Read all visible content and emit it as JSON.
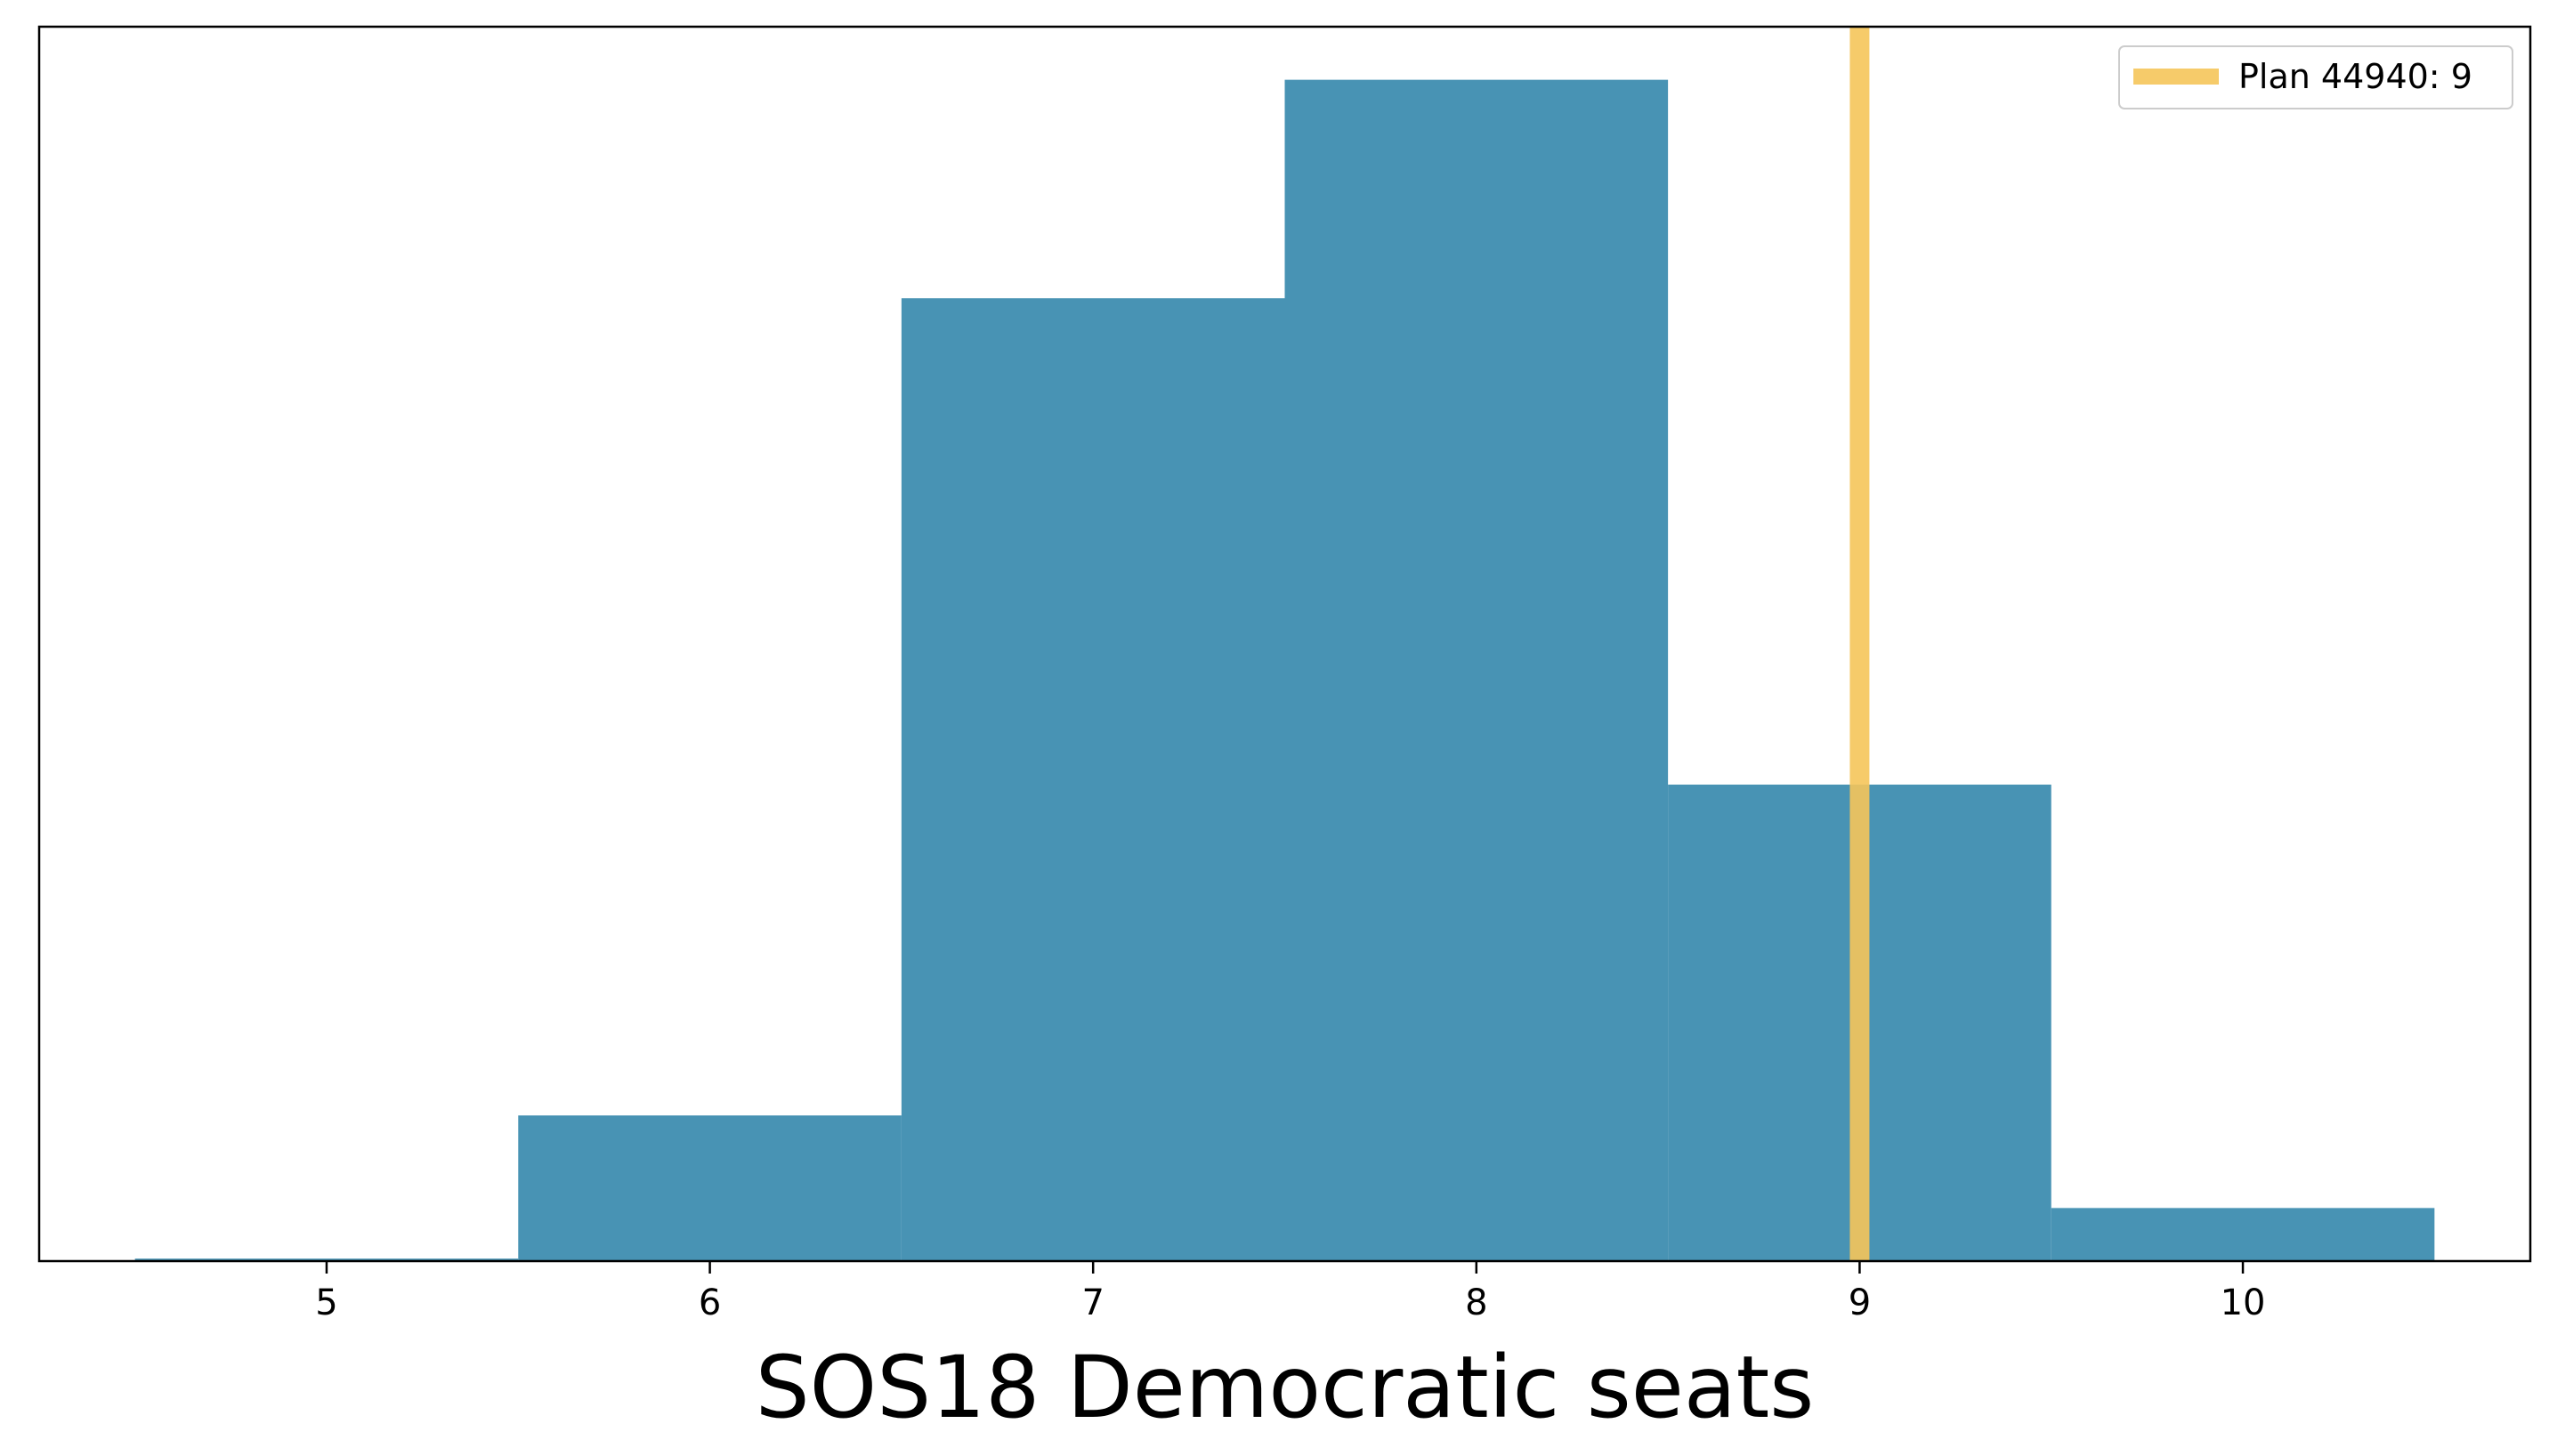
{
  "chart_data": {
    "type": "bar",
    "xlabel": "SOS18 Democratic seats",
    "ylabel": "",
    "xlim": [
      4.25,
      10.75
    ],
    "ylim": [
      0,
      1
    ],
    "x_ticks": [
      5,
      6,
      7,
      8,
      9,
      10
    ],
    "y_ticks_shown": false,
    "grid": false,
    "bins": [
      {
        "x": 5,
        "value": 0.002
      },
      {
        "x": 6,
        "value": 0.118
      },
      {
        "x": 7,
        "value": 0.78
      },
      {
        "x": 8,
        "value": 0.957
      },
      {
        "x": 9,
        "value": 0.386
      },
      {
        "x": 10,
        "value": 0.043
      }
    ],
    "bin_width": 1,
    "bar_color": "#4893b4",
    "reference_line": {
      "x": 9,
      "label": "Plan 44940: 9",
      "color": "#f5c55a"
    },
    "legend_placement": "top-right"
  }
}
